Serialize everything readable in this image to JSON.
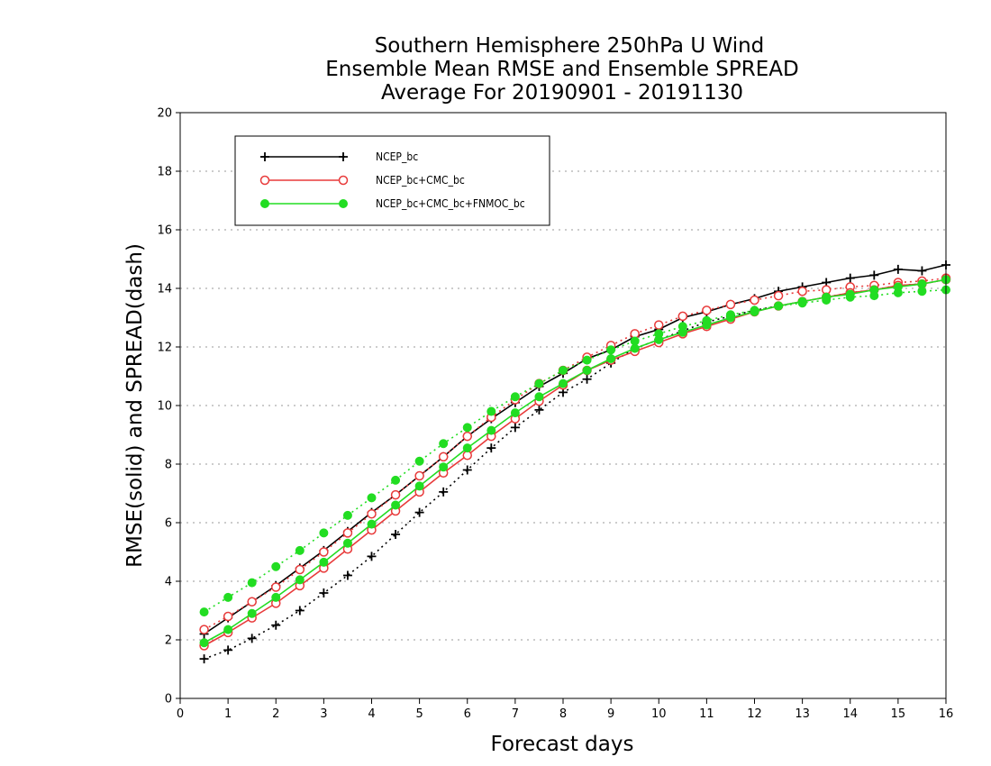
{
  "chart_data": {
    "type": "line",
    "title_lines": [
      "Southern Hemisphere 250hPa U Wind",
      "Ensemble Mean RMSE and Ensemble SPREAD",
      "Average For 20190901 - 20191130"
    ],
    "xlabel": "Forecast days",
    "ylabel": "RMSE(solid) and SPREAD(dash)",
    "xlim": [
      0,
      16
    ],
    "ylim": [
      0,
      20
    ],
    "xticks": [
      0,
      1,
      2,
      3,
      4,
      5,
      6,
      7,
      8,
      9,
      10,
      11,
      12,
      13,
      14,
      15,
      16
    ],
    "yticks": [
      0,
      2,
      4,
      6,
      8,
      10,
      12,
      14,
      16,
      18,
      20
    ],
    "grid": "horizontal-dotted",
    "legend_position": "top-left",
    "x": [
      0.5,
      1,
      1.5,
      2,
      2.5,
      3,
      3.5,
      4,
      4.5,
      5,
      5.5,
      6,
      6.5,
      7,
      7.5,
      8,
      8.5,
      9,
      9.5,
      10,
      10.5,
      11,
      11.5,
      12,
      12.5,
      13,
      13.5,
      14,
      14.5,
      15,
      15.5,
      16
    ],
    "series": [
      {
        "name": "NCEP_bc",
        "color": "#000000",
        "marker": "plus",
        "rmse": [
          2.2,
          2.75,
          3.3,
          3.85,
          4.45,
          5.05,
          5.7,
          6.35,
          6.95,
          7.6,
          8.25,
          8.95,
          9.55,
          10.1,
          10.65,
          11.1,
          11.6,
          11.9,
          12.35,
          12.6,
          13.0,
          13.2,
          13.45,
          13.65,
          13.9,
          14.05,
          14.2,
          14.35,
          14.45,
          14.65,
          14.6,
          14.8
        ],
        "spread": [
          1.35,
          1.65,
          2.05,
          2.5,
          3.0,
          3.6,
          4.2,
          4.85,
          5.6,
          6.35,
          7.05,
          7.8,
          8.55,
          9.25,
          9.85,
          10.45,
          10.9,
          11.45,
          11.95,
          12.25,
          12.55,
          12.85,
          13.05,
          13.25,
          13.4,
          13.55,
          13.7,
          13.85,
          13.95,
          14.1,
          14.15,
          14.3
        ]
      },
      {
        "name": "NCEP_bc+CMC_bc",
        "color": "#e83a3a",
        "marker": "open-circle",
        "rmse": [
          1.8,
          2.25,
          2.75,
          3.25,
          3.85,
          4.45,
          5.1,
          5.75,
          6.4,
          7.05,
          7.7,
          8.3,
          8.95,
          9.55,
          10.15,
          10.7,
          11.2,
          11.55,
          11.85,
          12.15,
          12.45,
          12.7,
          12.95,
          13.2,
          13.4,
          13.55,
          13.7,
          13.85,
          13.95,
          14.1,
          14.15,
          14.3
        ],
        "spread": [
          2.35,
          2.8,
          3.3,
          3.8,
          4.4,
          5.0,
          5.65,
          6.3,
          6.95,
          7.6,
          8.25,
          8.95,
          9.6,
          10.2,
          10.75,
          11.2,
          11.65,
          12.05,
          12.45,
          12.75,
          13.05,
          13.25,
          13.45,
          13.6,
          13.75,
          13.9,
          13.95,
          14.05,
          14.1,
          14.2,
          14.25,
          14.35
        ]
      },
      {
        "name": "NCEP_bc+CMC_bc+FNMOC_bc",
        "color": "#22dd22",
        "marker": "filled-circle",
        "rmse": [
          1.9,
          2.35,
          2.9,
          3.45,
          4.05,
          4.65,
          5.3,
          5.95,
          6.6,
          7.25,
          7.9,
          8.55,
          9.15,
          9.75,
          10.3,
          10.75,
          11.2,
          11.6,
          11.95,
          12.25,
          12.5,
          12.75,
          13.0,
          13.2,
          13.4,
          13.55,
          13.7,
          13.8,
          13.95,
          14.05,
          14.15,
          14.3
        ],
        "spread": [
          2.95,
          3.45,
          3.95,
          4.5,
          5.05,
          5.65,
          6.25,
          6.85,
          7.45,
          8.1,
          8.7,
          9.25,
          9.8,
          10.3,
          10.75,
          11.2,
          11.55,
          11.9,
          12.2,
          12.45,
          12.7,
          12.9,
          13.1,
          13.25,
          13.4,
          13.5,
          13.6,
          13.7,
          13.75,
          13.85,
          13.9,
          13.95
        ]
      }
    ]
  }
}
